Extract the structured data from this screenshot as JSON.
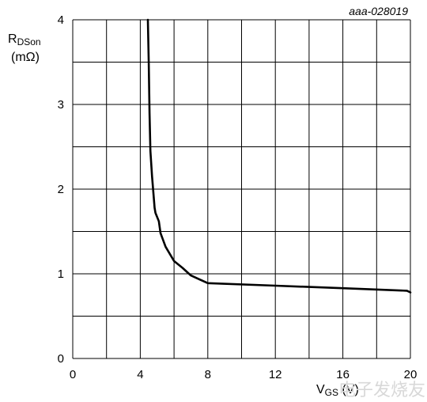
{
  "chart_data": {
    "type": "line",
    "annotation": "aaa-028019",
    "ylabel": {
      "main": "R",
      "sub": "DSon",
      "unit": "(mΩ)"
    },
    "xlabel": {
      "main": "V",
      "sub": "GS",
      "unit": " (V)"
    },
    "xlim": [
      0,
      20
    ],
    "ylim": [
      0,
      4
    ],
    "x_ticks": [
      0,
      4,
      8,
      12,
      16,
      20
    ],
    "y_ticks": [
      0,
      1,
      2,
      3,
      4
    ],
    "grid": true,
    "series": [
      {
        "x": [
          4.45,
          4.5,
          4.55,
          4.6,
          4.7,
          4.85,
          4.9,
          5.1,
          5.2,
          5.5,
          6.0,
          6.5,
          7.0,
          8.0,
          12.0,
          16.0,
          19.8,
          20.0
        ],
        "y": [
          4.0,
          3.5,
          2.9,
          2.45,
          2.15,
          1.78,
          1.72,
          1.62,
          1.48,
          1.32,
          1.15,
          1.07,
          0.98,
          0.89,
          0.86,
          0.83,
          0.8,
          0.78
        ]
      }
    ]
  },
  "watermark": "电子发烧友"
}
